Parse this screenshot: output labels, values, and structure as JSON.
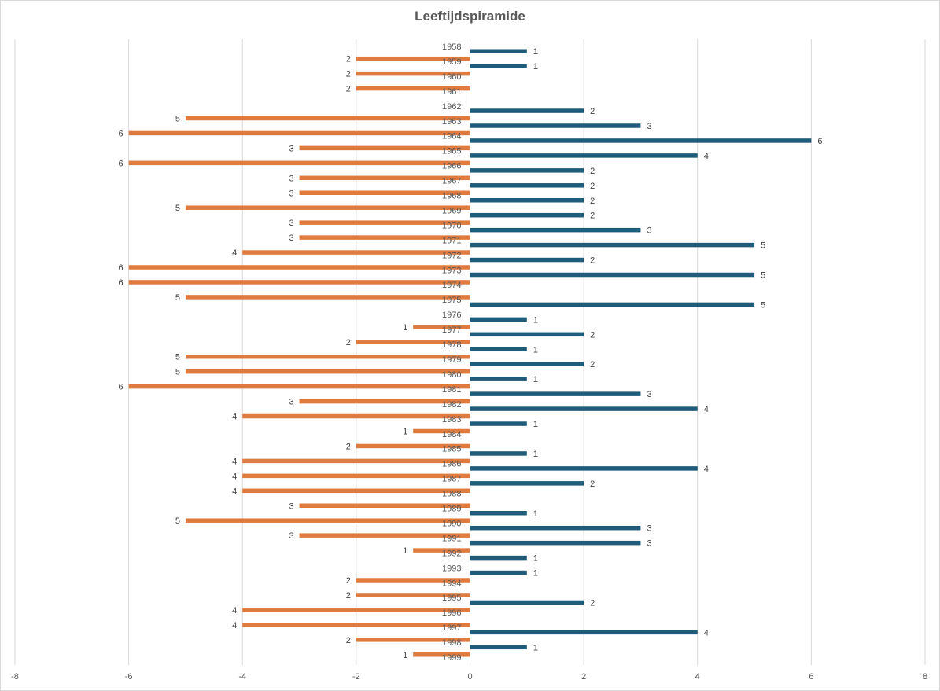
{
  "chart_data": {
    "type": "bar",
    "orientation": "horizontal",
    "title": "Leeftijdspiramide",
    "xlabel": "",
    "ylabel": "",
    "xlim": [
      -8,
      8
    ],
    "xticks": [
      -8,
      -6,
      -4,
      -2,
      0,
      2,
      4,
      6,
      8
    ],
    "grid": true,
    "legend": "none",
    "categories": [
      "1958",
      "1959",
      "1960",
      "1961",
      "1962",
      "1963",
      "1964",
      "1965",
      "1966",
      "1967",
      "1968",
      "1969",
      "1970",
      "1971",
      "1972",
      "1973",
      "1974",
      "1975",
      "1976",
      "1977",
      "1978",
      "1979",
      "1980",
      "1981",
      "1982",
      "1983",
      "1984",
      "1985",
      "1986",
      "1987",
      "1988",
      "1989",
      "1990",
      "1991",
      "1992",
      "1993",
      "1994",
      "1995",
      "1996",
      "1997",
      "1998",
      "1999"
    ],
    "series": [
      {
        "color": "#e07b3f",
        "values": [
          0,
          -2,
          -2,
          -2,
          0,
          -5,
          -6,
          -3,
          -6,
          -3,
          -3,
          -5,
          -3,
          -3,
          -4,
          -6,
          -6,
          -5,
          0,
          -1,
          -2,
          -5,
          -5,
          -6,
          -3,
          -4,
          -1,
          -2,
          -4,
          -4,
          -4,
          -3,
          -5,
          -3,
          -1,
          0,
          -2,
          -2,
          -4,
          -4,
          -2,
          -1
        ]
      },
      {
        "color": "#1f5c7a",
        "values": [
          1,
          1,
          0,
          0,
          2,
          3,
          6,
          4,
          2,
          2,
          2,
          2,
          3,
          5,
          2,
          5,
          0,
          5,
          1,
          2,
          1,
          2,
          1,
          3,
          4,
          1,
          0,
          1,
          4,
          2,
          0,
          1,
          3,
          3,
          1,
          1,
          0,
          2,
          0,
          4,
          1,
          0
        ]
      }
    ]
  }
}
